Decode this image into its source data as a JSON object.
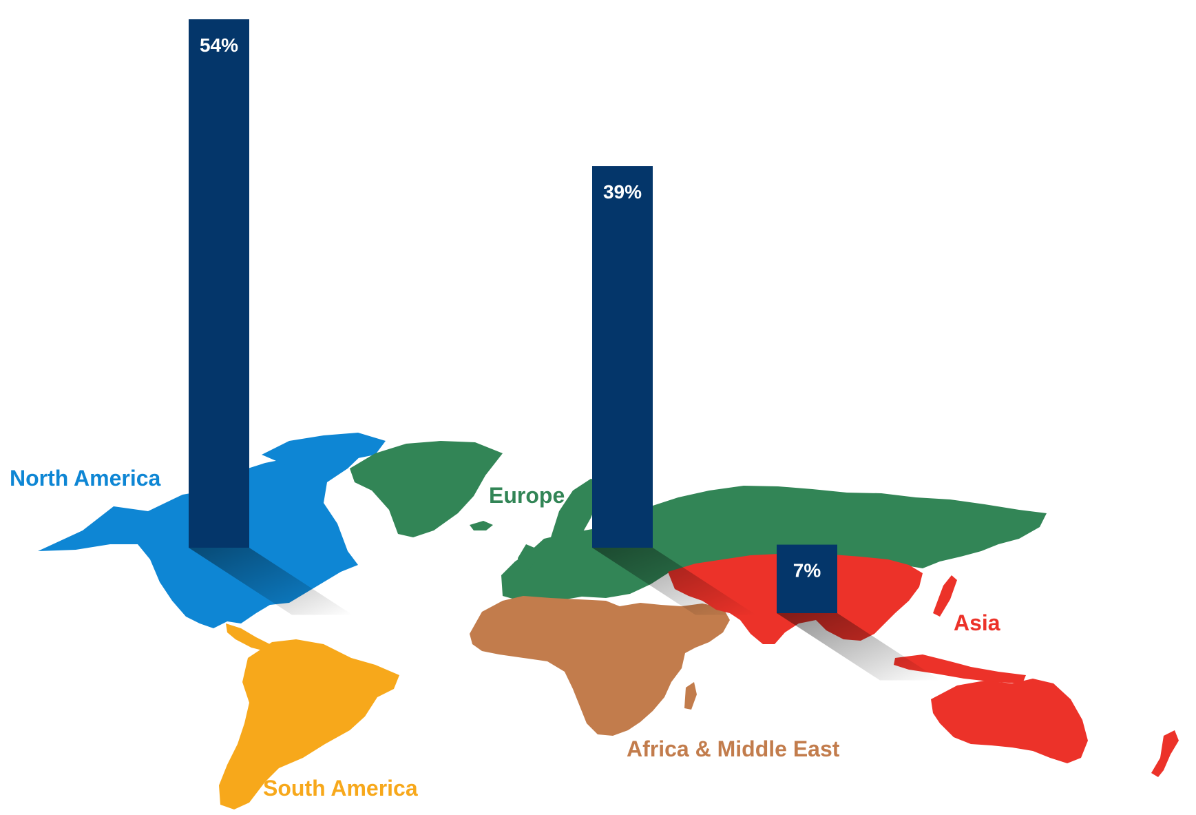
{
  "chart_data": {
    "type": "bar",
    "unit": "%",
    "categories": [
      "North America",
      "Europe",
      "Asia"
    ],
    "values": [
      54,
      39,
      7
    ],
    "value_labels": [
      "54%",
      "39%",
      "7%"
    ],
    "bar_color": "#04366a"
  },
  "regions": [
    {
      "name": "North America",
      "color": "#0e86d4"
    },
    {
      "name": "South America",
      "color": "#f7a81b"
    },
    {
      "name": "Europe",
      "color": "#328556"
    },
    {
      "name": "Africa & Middle East",
      "color": "#c27c4c"
    },
    {
      "name": "Asia",
      "color": "#ec3229"
    }
  ]
}
